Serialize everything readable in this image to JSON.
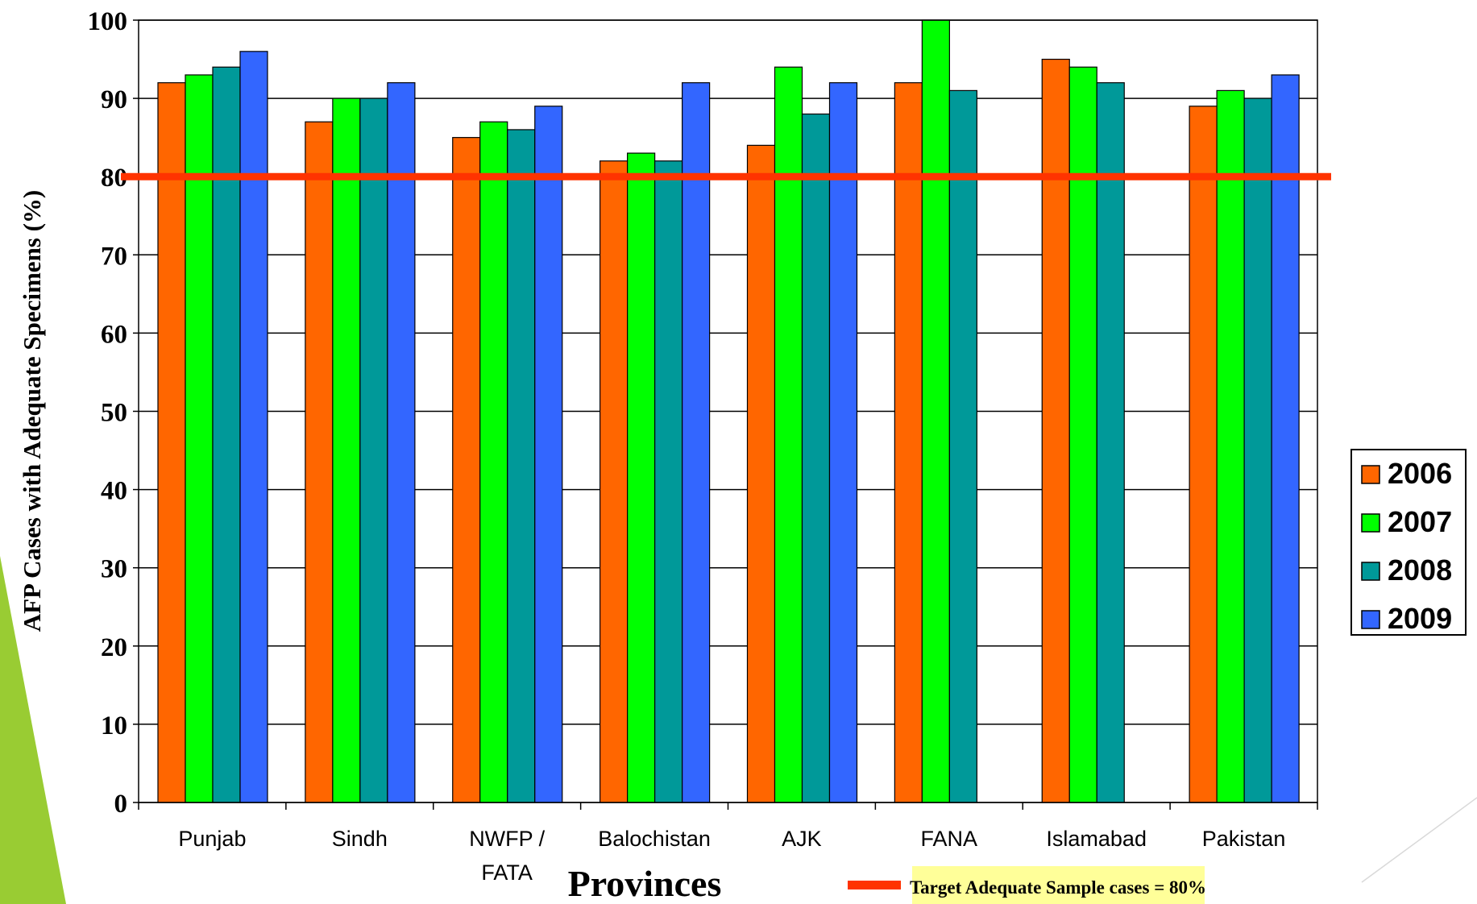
{
  "chart_data": {
    "type": "bar",
    "title": "",
    "xlabel": "Provinces",
    "ylabel": "AFP Cases with Adequate Specimens (%)",
    "ylim": [
      0,
      100
    ],
    "yticks": [
      "0",
      "10",
      "20",
      "30",
      "40",
      "50",
      "60",
      "70",
      "80",
      "90",
      "100"
    ],
    "grid": true,
    "legend_position": "right",
    "categories": [
      [
        "Punjab"
      ],
      [
        "Sindh"
      ],
      [
        "NWFP /",
        "FATA"
      ],
      [
        "Balochistan"
      ],
      [
        "AJK"
      ],
      [
        "FANA"
      ],
      [
        "Islamabad"
      ],
      [
        "Pakistan"
      ]
    ],
    "series": [
      {
        "name": "2006",
        "color": "#ff6600",
        "values": [
          92,
          87,
          85,
          82,
          84,
          92,
          95,
          89
        ]
      },
      {
        "name": "2007",
        "color": "#00ff00",
        "values": [
          93,
          90,
          87,
          83,
          94,
          100,
          94,
          91
        ]
      },
      {
        "name": "2008",
        "color": "#009999",
        "values": [
          94,
          90,
          86,
          82,
          88,
          91,
          92,
          90
        ]
      },
      {
        "name": "2009",
        "color": "#3366ff",
        "values": [
          96,
          92,
          89,
          92,
          92,
          null,
          null,
          93
        ]
      }
    ],
    "target_line": {
      "value": 80,
      "color": "#ff3300",
      "label": "Target Adequate Sample cases = 80%"
    }
  },
  "decor": {
    "left_accent": "#99cc33",
    "target_label_bg": "#ffff99",
    "corner_line": "#d9d9d9"
  }
}
